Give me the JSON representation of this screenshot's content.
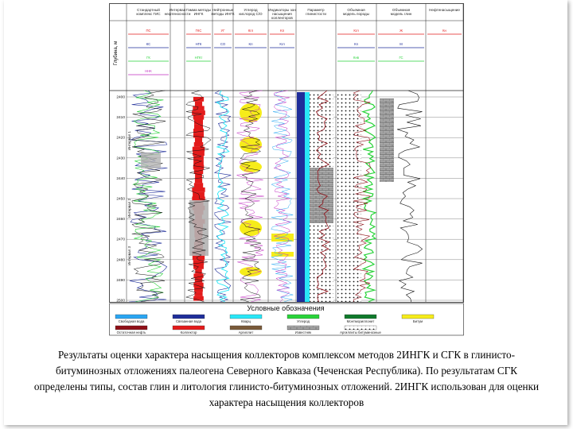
{
  "headers": [
    "Стандартный комплекс ГИС",
    "Интервал нефтеносности",
    "Гамма методы ИНГК",
    "Нейтронные методы ИНГК",
    "Углерод кислород С/О",
    "Индикаторы зон насыщения коллекторов",
    "Параметр глинистости",
    "Объемная модель породы",
    "Объемная модель глин",
    "Нефтенасыщение"
  ],
  "depth_label": "Глубина, м",
  "depth_ticks": [
    "2400",
    "2410",
    "2420",
    "2430",
    "2440",
    "2450",
    "2460",
    "2470",
    "2480",
    "2490",
    "2500"
  ],
  "zone_labels": [
    "Интервал 1",
    "Интервал 2",
    "Интервал 3"
  ],
  "curve_labels": {
    "track1": [
      "ПС",
      "КС",
      "ГК",
      "ННК"
    ],
    "track3": [
      "ГКС",
      "НГК",
      "НГКт"
    ],
    "track4": [
      "УГ",
      "СО"
    ],
    "track5": [
      "Кгл",
      "Kп"
    ],
    "track6": [
      "Kп",
      "Кгл"
    ],
    "track8": [
      "Кгл",
      "Кп",
      "Кнв"
    ],
    "track9": [
      "Ж",
      "М",
      "ГС"
    ],
    "track10": [
      "Кн"
    ]
  },
  "legend": {
    "title": "Условные обозначения",
    "items": [
      {
        "label": "Свободная вода",
        "color": "#2aa6f2",
        "pattern": "solid"
      },
      {
        "label": "Связанная вода",
        "color": "#1f2e9a",
        "pattern": "solid"
      },
      {
        "label": "Кварц",
        "color": "#29e7f7",
        "pattern": "solid"
      },
      {
        "label": "Углерод",
        "color": "#29d33a",
        "pattern": "solid"
      },
      {
        "label": "Монтмориллонит",
        "color": "#0f7a2c",
        "pattern": "solid"
      },
      {
        "label": "Битум",
        "color": "#f6ec1a",
        "pattern": "solid"
      },
      {
        "label": "Остаточная нефть",
        "color": "#8f0f17",
        "pattern": "solid"
      },
      {
        "label": "Коллектор",
        "color": "#e31b1b",
        "pattern": "solid"
      },
      {
        "label": "Аргиллит",
        "color": "#7a5a3a",
        "pattern": "solid"
      },
      {
        "label": "Известняк",
        "color": "#9a9a9a",
        "pattern": "brick"
      },
      {
        "label": "Аргиллиты битуминозные",
        "color": "#ffffff",
        "pattern": "dots"
      }
    ]
  },
  "caption": "Результаты оценки характера насыщения коллекторов комплексом методов 2ИНГК и СГК в глинисто-битуминозных отложениях палеогена Северного Кавказа (Чеченская Республика). По результатам СГК определены типы, состав глин и литология глинисто-битуминозных отложений. 2ИНГК использован для оценки характера насыщения коллекторов",
  "colors": {
    "grid": "#222222",
    "red_fill": "#e31b1b",
    "gray_fill": "#b3b3b3",
    "yellow_fill": "#f6ec1a",
    "cyan_fill": "#29e7f7",
    "blue_fill": "#1f2e9a",
    "green_fill": "#29d33a"
  }
}
